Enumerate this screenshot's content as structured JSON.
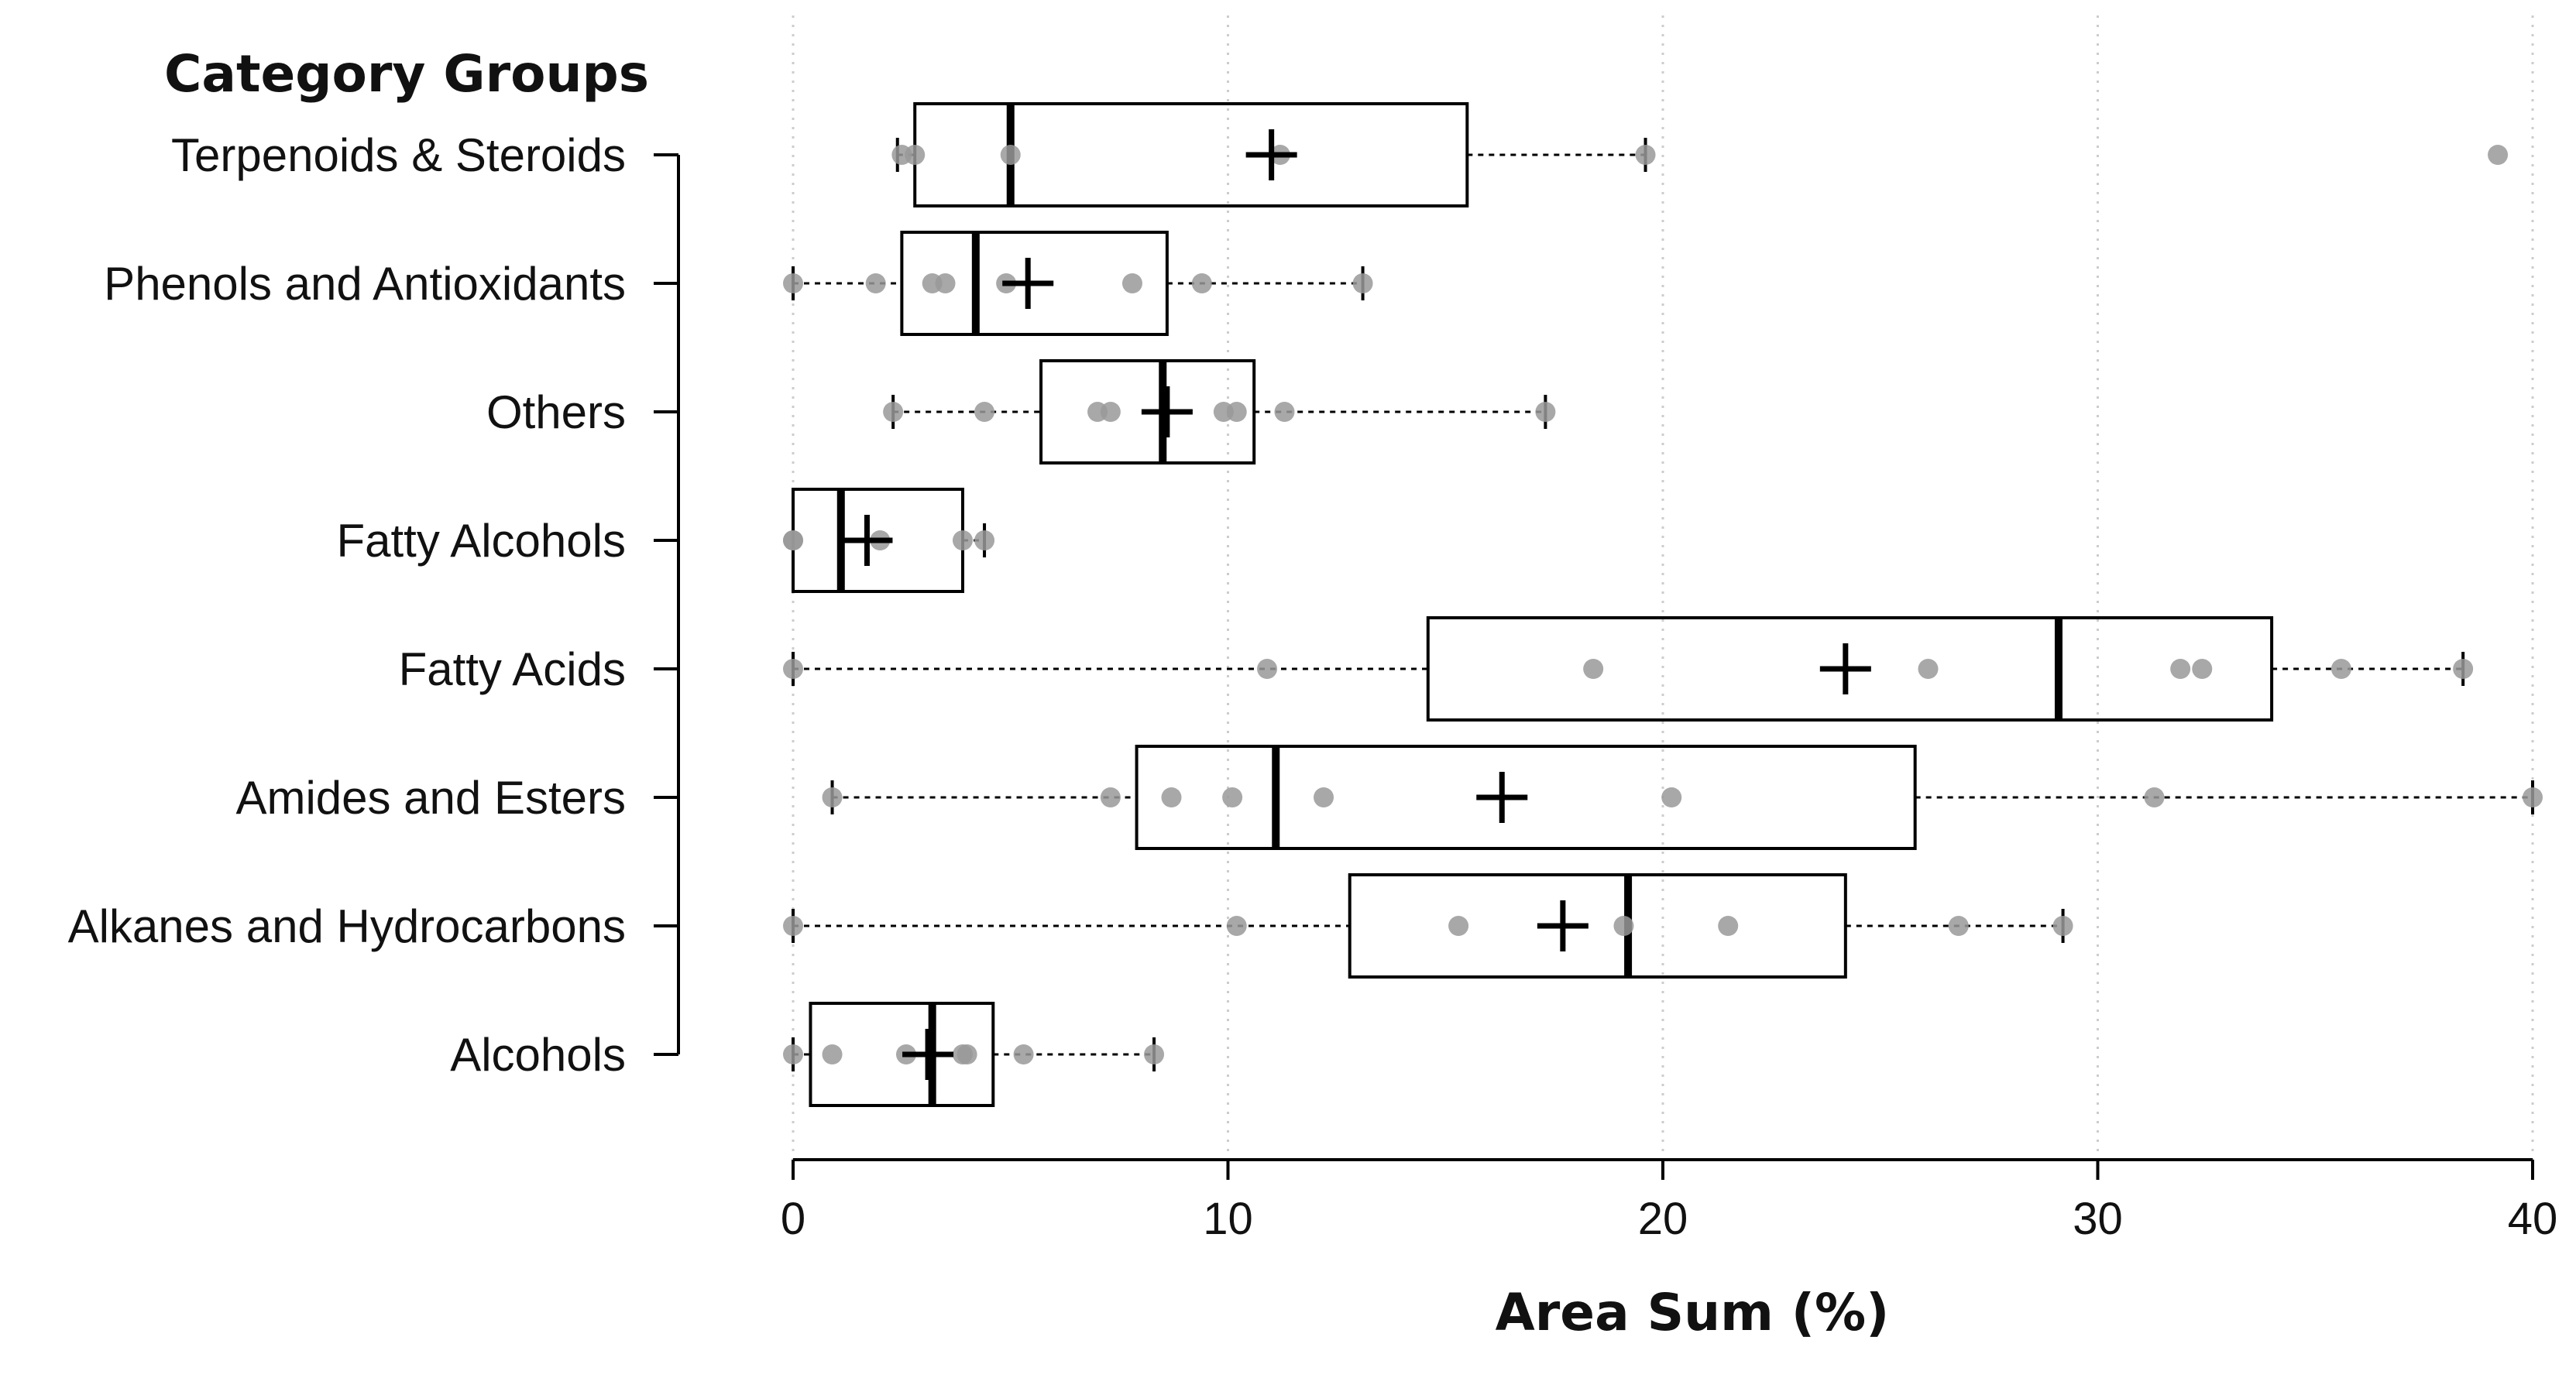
{
  "chart_data": {
    "type": "boxplot",
    "orientation": "horizontal",
    "ylabel": "Category Groups",
    "xlabel": "Area Sum (%)",
    "xlim": [
      0,
      40
    ],
    "xticks": [
      0,
      10,
      20,
      30,
      40
    ],
    "grid": "vertical-dotted",
    "colors": {
      "box": "#000000",
      "points": "#999999",
      "grid": "#cccccc"
    },
    "categories": [
      "Terpenoids & Steroids",
      "Phenols and Antioxidants",
      "Others",
      "Fatty Alcohols",
      "Fatty Acids",
      "Amides and Esters",
      "Alkanes and Hydrocarbons",
      "Alcohols"
    ],
    "series": [
      {
        "category": "Terpenoids & Steroids",
        "whisker_low": 2.4,
        "q1": 2.8,
        "median": 5.0,
        "q3": 15.5,
        "whisker_high": 19.6,
        "mean": 11.0,
        "points": [
          2.5,
          2.8,
          5.0,
          11.2,
          19.6,
          39.2
        ]
      },
      {
        "category": "Phenols and Antioxidants",
        "whisker_low": 0.0,
        "q1": 2.5,
        "median": 4.2,
        "q3": 8.6,
        "whisker_high": 13.1,
        "mean": 5.4,
        "points": [
          0.0,
          1.9,
          3.2,
          3.5,
          4.9,
          7.8,
          9.4,
          13.1
        ]
      },
      {
        "category": "Others",
        "whisker_low": 2.3,
        "q1": 5.7,
        "median": 8.5,
        "q3": 10.6,
        "whisker_high": 17.3,
        "mean": 8.6,
        "points": [
          2.3,
          4.4,
          7.0,
          7.3,
          9.9,
          10.2,
          11.3,
          17.3
        ]
      },
      {
        "category": "Fatty Alcohols",
        "whisker_low": 0.0,
        "q1": 0.0,
        "median": 1.1,
        "q3": 3.9,
        "whisker_high": 4.4,
        "mean": 1.7,
        "points": [
          0.0,
          0.0,
          2.0,
          3.9,
          4.4
        ]
      },
      {
        "category": "Fatty Acids",
        "whisker_low": 0.0,
        "q1": 14.6,
        "median": 29.1,
        "q3": 34.0,
        "whisker_high": 38.4,
        "mean": 24.2,
        "points": [
          0.0,
          10.9,
          18.4,
          26.1,
          31.9,
          32.4,
          35.6,
          38.4
        ]
      },
      {
        "category": "Amides and Esters",
        "whisker_low": 0.9,
        "q1": 7.9,
        "median": 11.1,
        "q3": 25.8,
        "whisker_high": 40.0,
        "mean": 16.3,
        "points": [
          0.9,
          7.3,
          8.7,
          10.1,
          12.2,
          20.2,
          31.3,
          40.0
        ]
      },
      {
        "category": "Alkanes and Hydrocarbons",
        "whisker_low": 0.0,
        "q1": 12.8,
        "median": 19.2,
        "q3": 24.2,
        "whisker_high": 29.2,
        "mean": 17.7,
        "points": [
          0.0,
          10.2,
          15.3,
          19.1,
          21.5,
          26.8,
          29.2
        ]
      },
      {
        "category": "Alcohols",
        "whisker_low": 0.0,
        "q1": 0.4,
        "median": 3.2,
        "q3": 4.6,
        "whisker_high": 8.3,
        "mean": 3.1,
        "points": [
          0.0,
          0.9,
          2.6,
          3.9,
          4.0,
          5.3,
          8.3
        ]
      }
    ]
  }
}
